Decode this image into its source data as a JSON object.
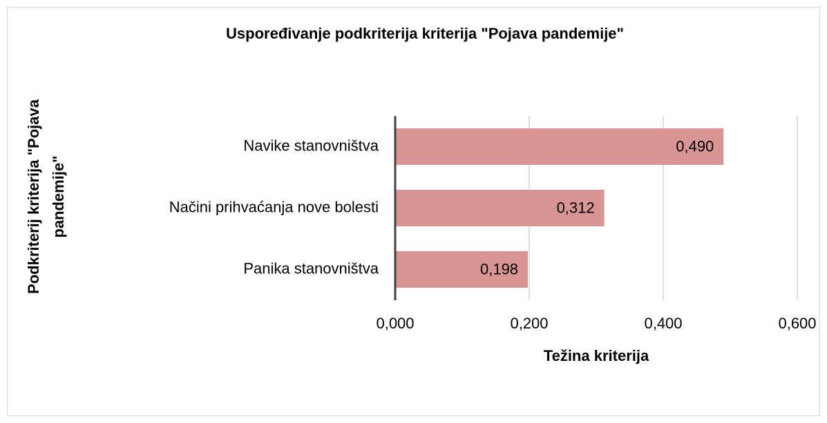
{
  "chart_data": {
    "type": "bar",
    "orientation": "horizontal",
    "title": "Uspoređivanje podkriterija kriterija \"Pojava pandemije\"",
    "x_label": "Težina kriterija",
    "y_label": [
      "Podkriterij kriterija \"Pojava",
      "pandemije\""
    ],
    "categories": [
      "Navike stanovništva",
      "Načini prihvaćanja nove bolesti",
      "Panika stanovništva"
    ],
    "values": [
      0.49,
      0.312,
      0.198
    ],
    "value_labels": [
      "0,490",
      "0,312",
      "0,198"
    ],
    "color": "#d99594",
    "xlim": [
      0,
      0.6
    ],
    "xticks": [
      {
        "value": 0,
        "label": "0,000"
      },
      {
        "value": 0.2,
        "label": "0,200"
      },
      {
        "value": 0.4,
        "label": "0,400"
      },
      {
        "value": 0.6,
        "label": "0,600"
      }
    ],
    "grid": true
  }
}
